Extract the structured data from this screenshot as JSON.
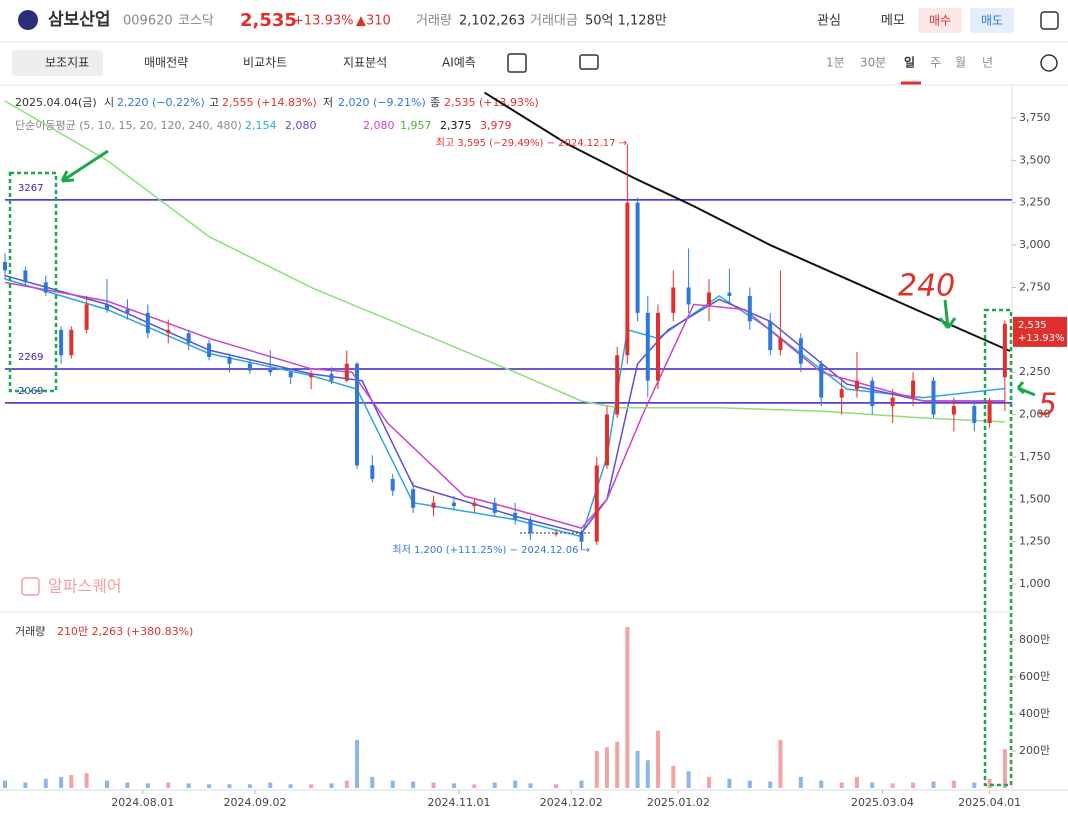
{
  "header": {
    "name": "삼보산업",
    "code": "009620",
    "market": "코스닥",
    "price": "2,535",
    "change_pct": "+13.93%",
    "change": "▲310",
    "volume_label": "거래량",
    "volume": "2,102,263",
    "amount_label": "거래대금",
    "amount": "50억 1,128만",
    "watch": "관심",
    "memo": "메모",
    "buy": "매수",
    "sell": "매도"
  },
  "toolbar": {
    "items": [
      "보조지표",
      "매매전략",
      "비교차트",
      "지표분석",
      "AI예측"
    ],
    "periods": [
      "1분",
      "30분",
      "일",
      "주",
      "월",
      "년"
    ]
  },
  "legend": {
    "date": "2025.04.04(금)",
    "open_label": "시",
    "open": "2,220 (−0.22%)",
    "high_label": "고",
    "high": "2,555 (+14.83%)",
    "low_label": "저",
    "low": "2,020 (−9.21%)",
    "close_label": "종",
    "close": "2,535 (+13.93%)",
    "ma_label": "단순이동평균 (5, 10, 15, 20, 120, 240, 480)",
    "ma_values": [
      "2,154",
      "2,080",
      "2,080",
      "1,957",
      "2,375",
      "3,979"
    ],
    "ma_colors": [
      "#29a8e0",
      "#5b4fd8",
      "#cc44cc",
      "#4caf3a",
      "#111111",
      "#e0302e"
    ]
  },
  "watermark": "알파스퀘어",
  "chart_data": [
    {
      "type": "candlestick",
      "up_color": "#e0302e",
      "down_color": "#2f78d8",
      "xlim": [
        0,
        197
      ],
      "xticks": [
        {
          "value": 27,
          "label": "2024.08.01"
        },
        {
          "value": 49,
          "label": "2024.09.02"
        },
        {
          "value": 89,
          "label": "2024.11.01"
        },
        {
          "value": 111,
          "label": "2024.12.02"
        },
        {
          "value": 132,
          "label": "2025.01.02"
        },
        {
          "value": 172,
          "label": "2025.03.04"
        },
        {
          "value": 193,
          "label": "2025.04.01"
        }
      ],
      "ylim": [
        835,
        3915
      ],
      "yticks": [
        {
          "value": 1000,
          "label": "1,000"
        },
        {
          "value": 1250,
          "label": "1,250"
        },
        {
          "value": 1500,
          "label": "1,500"
        },
        {
          "value": 1750,
          "label": "1,750"
        },
        {
          "value": 2000,
          "label": "2,000"
        },
        {
          "value": 2250,
          "label": "2,250"
        },
        {
          "value": 2500,
          "label": "2,500"
        },
        {
          "value": 2750,
          "label": "2,750"
        },
        {
          "value": 3000,
          "label": "3,000"
        },
        {
          "value": 3250,
          "label": "3,250"
        },
        {
          "value": 3500,
          "label": "3,500"
        },
        {
          "value": 3750,
          "label": "3,750"
        }
      ],
      "x": [
        0,
        4,
        8,
        11,
        13,
        16,
        20,
        24,
        28,
        32,
        36,
        40,
        44,
        48,
        52,
        56,
        60,
        64,
        67,
        69,
        72,
        76,
        80,
        84,
        88,
        92,
        96,
        100,
        103,
        108,
        113,
        116,
        118,
        120,
        122,
        124,
        126,
        128,
        131,
        134,
        138,
        142,
        146,
        150,
        152,
        156,
        160,
        164,
        167,
        170,
        174,
        178,
        182,
        186,
        190,
        193,
        196
      ],
      "open": [
        2900,
        2850,
        2780,
        2500,
        2350,
        2500,
        2650,
        2620,
        2600,
        2480,
        2480,
        2420,
        2340,
        2300,
        2270,
        2250,
        2220,
        2240,
        2200,
        2300,
        1700,
        1620,
        1560,
        1450,
        1480,
        1460,
        1480,
        1420,
        1380,
        1300,
        1300,
        1250,
        1700,
        2000,
        2350,
        3250,
        2600,
        2200,
        2600,
        2750,
        2650,
        2720,
        2700,
        2550,
        2380,
        2450,
        2300,
        2100,
        2150,
        2200,
        2050,
        2100,
        2200,
        2000,
        2050,
        1950,
        2220
      ],
      "high": [
        2950,
        2870,
        2820,
        2520,
        2520,
        2700,
        2800,
        2680,
        2650,
        2560,
        2500,
        2440,
        2360,
        2320,
        2380,
        2270,
        2260,
        2280,
        2380,
        2310,
        1760,
        1650,
        1600,
        1520,
        1520,
        1500,
        1510,
        1480,
        1400,
        1320,
        1320,
        1750,
        2050,
        2400,
        3595,
        3280,
        2700,
        2650,
        2850,
        2980,
        2800,
        2860,
        2750,
        2600,
        2850,
        2480,
        2320,
        2200,
        2370,
        2220,
        2150,
        2250,
        2220,
        2100,
        2080,
        2100,
        2555
      ],
      "low": [
        2800,
        2760,
        2700,
        2300,
        2330,
        2480,
        2600,
        2560,
        2450,
        2420,
        2380,
        2320,
        2250,
        2240,
        2230,
        2180,
        2150,
        2180,
        2190,
        1680,
        1600,
        1520,
        1420,
        1400,
        1440,
        1420,
        1400,
        1350,
        1260,
        1280,
        1200,
        1230,
        1680,
        1980,
        2300,
        2550,
        2100,
        2150,
        2550,
        2600,
        2550,
        2650,
        2500,
        2350,
        2350,
        2250,
        2050,
        2000,
        2100,
        2000,
        1950,
        2050,
        1980,
        1900,
        1900,
        1920,
        2020
      ],
      "close": [
        2850,
        2780,
        2720,
        2350,
        2500,
        2650,
        2620,
        2600,
        2480,
        2500,
        2420,
        2340,
        2300,
        2260,
        2250,
        2220,
        2240,
        2200,
        2300,
        1700,
        1620,
        1550,
        1450,
        1480,
        1460,
        1480,
        1420,
        1380,
        1300,
        1300,
        1250,
        1700,
        2000,
        2350,
        3250,
        2600,
        2200,
        2600,
        2750,
        2650,
        2720,
        2700,
        2550,
        2380,
        2450,
        2300,
        2100,
        2150,
        2200,
        2050,
        2100,
        2200,
        2000,
        2050,
        1950,
        2080,
        2535
      ],
      "lines": [
        {
          "color": "#29a8e0",
          "x": [
            0,
            20,
            40,
            60,
            69,
            80,
            100,
            113,
            118,
            122,
            128,
            140,
            150,
            165,
            180,
            196
          ],
          "values": [
            2800,
            2620,
            2360,
            2230,
            2150,
            1480,
            1380,
            1280,
            1750,
            2500,
            2450,
            2700,
            2500,
            2150,
            2100,
            2154
          ]
        },
        {
          "color": "#5b4fd8",
          "x": [
            0,
            20,
            40,
            60,
            70,
            80,
            100,
            113,
            118,
            124,
            130,
            140,
            150,
            165,
            180,
            196
          ],
          "values": [
            2820,
            2650,
            2380,
            2240,
            2200,
            1580,
            1400,
            1300,
            1500,
            2300,
            2500,
            2680,
            2550,
            2180,
            2080,
            2080
          ]
        },
        {
          "color": "#cc44cc",
          "x": [
            0,
            20,
            40,
            60,
            68,
            75,
            90,
            100,
            113,
            118,
            125,
            135,
            145,
            160,
            180,
            196
          ],
          "values": [
            2780,
            2670,
            2450,
            2270,
            2250,
            1950,
            1520,
            1440,
            1330,
            1500,
            2000,
            2650,
            2620,
            2250,
            2080,
            2080
          ]
        },
        {
          "color": "#8be07a",
          "x": [
            0,
            20,
            40,
            60,
            80,
            100,
            113,
            120,
            140,
            160,
            180,
            196
          ],
          "values": [
            3850,
            3500,
            3050,
            2750,
            2500,
            2250,
            2080,
            2040,
            2040,
            2020,
            1980,
            1957
          ]
        },
        {
          "color": "#111111",
          "x": [
            94,
            110,
            123,
            135,
            150,
            165,
            180,
            197
          ],
          "values": [
            3900,
            3600,
            3400,
            3230,
            3000,
            2800,
            2600,
            2375
          ]
        }
      ],
      "levels": [
        3267,
        2269,
        2069
      ],
      "level_color": "#3a22c8",
      "high_note": "최고 3,595 (−29.49%) − 2024.12.17 →",
      "low_note": "최저 1,200 (+111.25%) − 2024.12.06 →",
      "last_price": {
        "value": 2535,
        "label": "2,535"
      },
      "last_change": "+13.93%",
      "annotations": [
        "240",
        "5"
      ]
    },
    {
      "type": "bar",
      "title": "거래량",
      "subtitle": "210만 2,263 (+380.83%)",
      "up_color": "#f3a3a3",
      "down_color": "#8db6ec",
      "ylim": [
        0,
        935
      ],
      "yticks": [
        {
          "value": 200,
          "label": "200만"
        },
        {
          "value": 400,
          "label": "400만"
        },
        {
          "value": 600,
          "label": "600만"
        },
        {
          "value": 800,
          "label": "800만"
        }
      ],
      "values": [
        40,
        30,
        50,
        60,
        70,
        80,
        40,
        30,
        25,
        30,
        25,
        20,
        20,
        20,
        30,
        20,
        20,
        25,
        40,
        260,
        60,
        40,
        35,
        30,
        25,
        20,
        30,
        40,
        25,
        20,
        40,
        200,
        220,
        250,
        870,
        200,
        150,
        310,
        120,
        90,
        60,
        50,
        40,
        35,
        260,
        60,
        40,
        30,
        60,
        30,
        25,
        30,
        35,
        40,
        30,
        50,
        210
      ]
    }
  ]
}
